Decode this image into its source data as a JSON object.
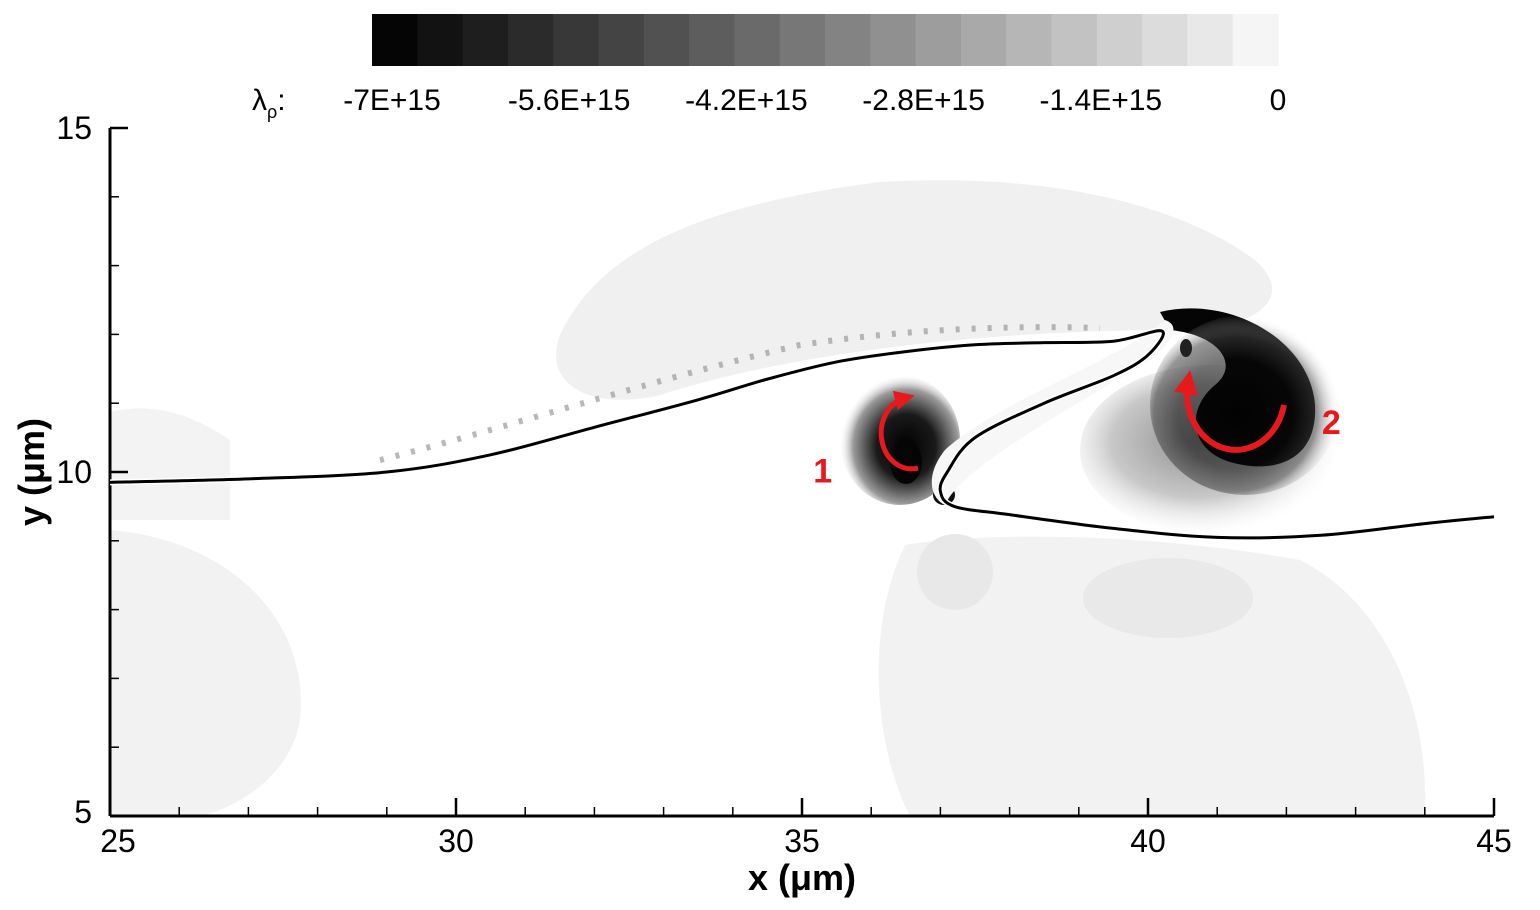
{
  "chart_data": {
    "type": "heatmap",
    "xlabel": "x (μm)",
    "ylabel": "y (μm)",
    "xlim": [
      25,
      45
    ],
    "ylim": [
      5,
      15
    ],
    "x_ticks": [
      "25",
      "30",
      "35",
      "40",
      "45"
    ],
    "y_ticks": [
      "5",
      "10",
      "15"
    ],
    "colorbar": {
      "variable_label": "λρ:",
      "variable_symbol": "λ",
      "variable_subscript": "ρ",
      "range": [
        -7000000000000000.0,
        0
      ],
      "ticks": [
        "-7E+15",
        "-5.6E+15",
        "-4.2E+15",
        "-2.8E+15",
        "-1.4E+15",
        "0"
      ],
      "levels": 20,
      "colormap": "grayscale, black = most negative, white = 0",
      "placement": "top"
    },
    "interface_curve": {
      "x": [
        25.0,
        27.0,
        29.0,
        30.5,
        32.0,
        33.5,
        34.5,
        35.5,
        36.5,
        37.5,
        38.5,
        39.5,
        40.2,
        40.0,
        39.5,
        38.5,
        37.5,
        37.1,
        37.0,
        37.2,
        38.0,
        39.5,
        41.0,
        42.5,
        44.0,
        45.0
      ],
      "y": [
        9.85,
        9.9,
        10.0,
        10.25,
        10.65,
        11.05,
        11.35,
        11.6,
        11.75,
        11.85,
        11.88,
        11.9,
        12.05,
        11.7,
        11.4,
        11.0,
        10.5,
        10.0,
        9.72,
        9.5,
        9.38,
        9.18,
        9.05,
        9.08,
        9.25,
        9.35
      ]
    },
    "annotations": [
      {
        "text": "1",
        "x": 35.3,
        "y": 9.85,
        "color": "#e8191d",
        "marker": "clockwise-arrow"
      },
      {
        "text": "2",
        "x": 42.65,
        "y": 10.55,
        "color": "#e8191d",
        "marker": "clockwise-arrow"
      }
    ],
    "grid": false,
    "legend": "none"
  }
}
